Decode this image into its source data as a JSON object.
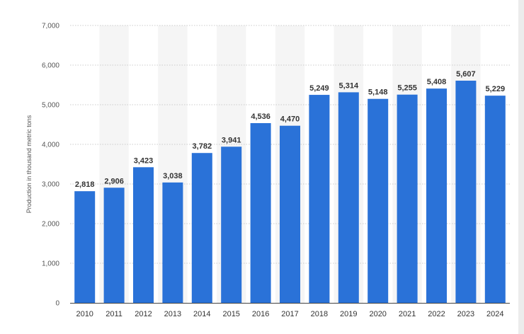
{
  "chart_data": {
    "type": "bar",
    "title": "",
    "xlabel": "",
    "ylabel": "Production in thousand metric tons",
    "ylim": [
      0,
      7000
    ],
    "yticks": [
      0,
      1000,
      2000,
      3000,
      4000,
      5000,
      6000,
      7000
    ],
    "ytick_labels": [
      "0",
      "1,000",
      "2,000",
      "3,000",
      "4,000",
      "5,000",
      "6,000",
      "7,000"
    ],
    "grid": true,
    "bar_color": "#2a72d8",
    "categories": [
      "2010",
      "2011",
      "2012",
      "2013",
      "2014",
      "2015",
      "2016",
      "2017",
      "2018",
      "2019",
      "2020",
      "2021",
      "2022",
      "2023",
      "2024"
    ],
    "values": [
      2818,
      2906,
      3423,
      3038,
      3782,
      3941,
      4536,
      4470,
      5249,
      5314,
      5148,
      5255,
      5408,
      5607,
      5229
    ],
    "value_labels": [
      "2,818",
      "2,906",
      "3,423",
      "3,038",
      "3,782",
      "3,941",
      "4,536",
      "4,470",
      "5,249",
      "5,314",
      "5,148",
      "5,255",
      "5,408",
      "5,607",
      "5,229"
    ]
  }
}
